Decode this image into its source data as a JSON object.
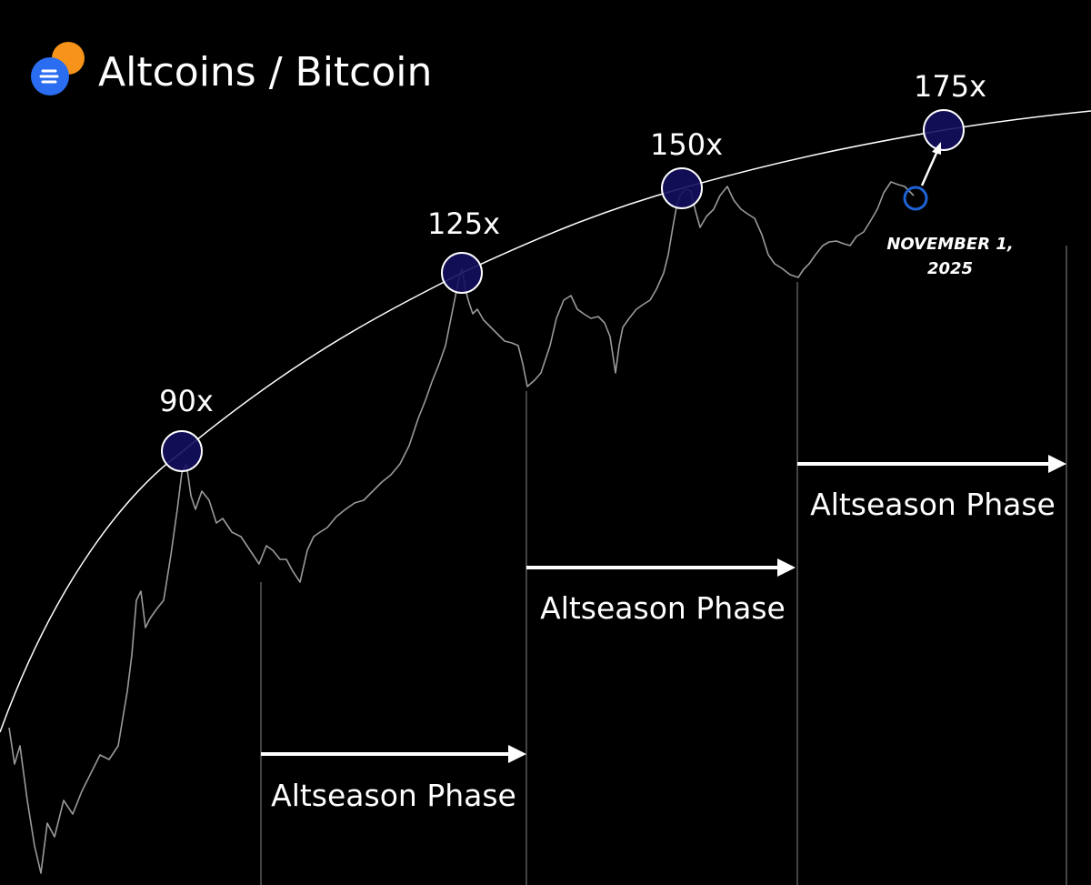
{
  "header": {
    "title": "Altcoins / Bitcoin"
  },
  "peaks": [
    {
      "label": "90x"
    },
    {
      "label": "125x"
    },
    {
      "label": "150x"
    },
    {
      "label": "175x"
    }
  ],
  "phases": [
    {
      "label": "Altseason Phase"
    },
    {
      "label": "Altseason Phase"
    },
    {
      "label": "Altseason Phase"
    }
  ],
  "annotation": {
    "lines": [
      "NOVEMBER 1,",
      "2025"
    ]
  }
}
